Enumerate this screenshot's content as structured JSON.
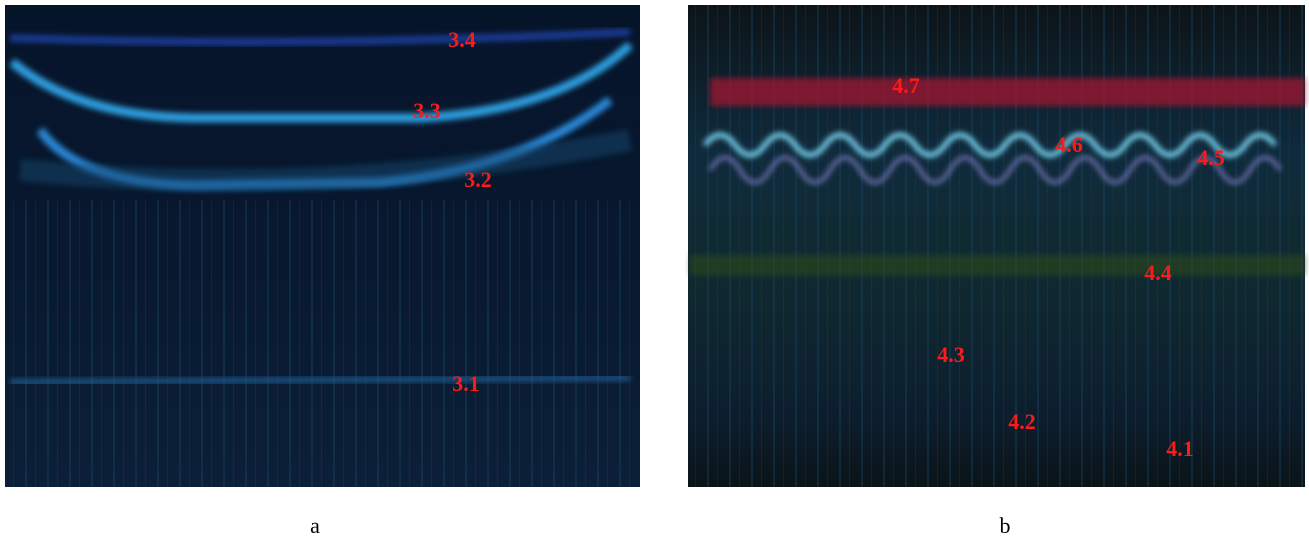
{
  "panels": [
    {
      "caption": "a",
      "labels": [
        "3.4",
        "3.3",
        "3.2",
        "3.1"
      ]
    },
    {
      "caption": "b",
      "labels": [
        "4.7",
        "4.6",
        "4.5",
        "4.4",
        "4.3",
        "4.2",
        "4.1"
      ]
    }
  ]
}
